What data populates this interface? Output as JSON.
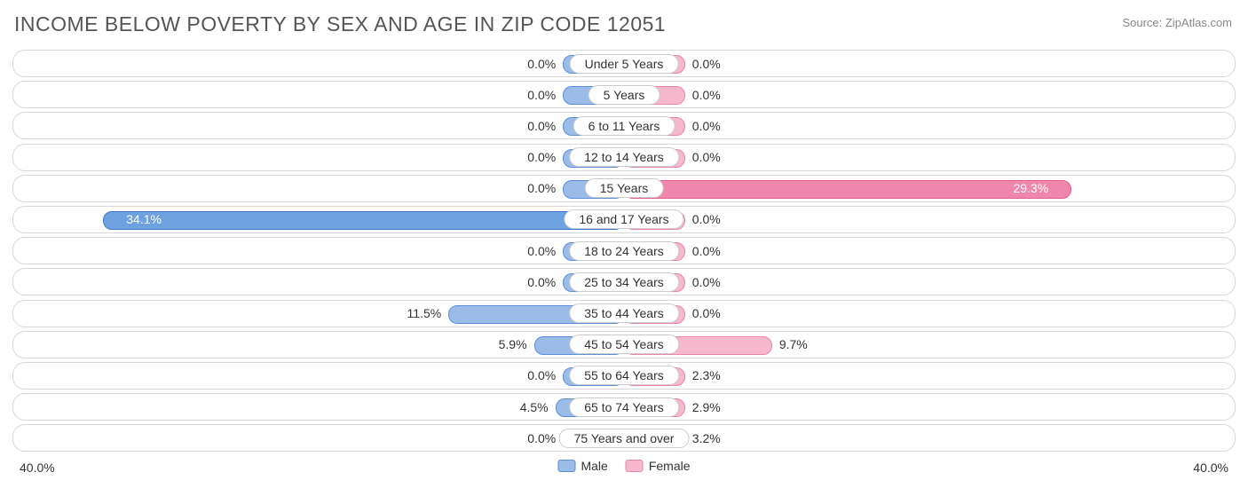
{
  "title": "INCOME BELOW POVERTY BY SEX AND AGE IN ZIP CODE 12051",
  "source": "Source: ZipAtlas.com",
  "axis_max_label": "40.0%",
  "axis_max_value": 40.0,
  "colors": {
    "male_fill": "#9cbce8",
    "male_border": "#5b8fd6",
    "male_highlight_fill": "#6ea1e0",
    "male_highlight_border": "#3f7bc9",
    "female_fill": "#f7b8ce",
    "female_border": "#e986ad",
    "female_highlight_fill": "#ef87ac",
    "female_highlight_border": "#e05f8f",
    "row_border": "#d8d8d8",
    "text": "#333333",
    "background": "#ffffff"
  },
  "legend": {
    "male": "Male",
    "female": "Female"
  },
  "min_bar_pct": 10.0,
  "rows": [
    {
      "category": "Under 5 Years",
      "male": 0.0,
      "female": 0.0,
      "male_label": "0.0%",
      "female_label": "0.0%"
    },
    {
      "category": "5 Years",
      "male": 0.0,
      "female": 0.0,
      "male_label": "0.0%",
      "female_label": "0.0%"
    },
    {
      "category": "6 to 11 Years",
      "male": 0.0,
      "female": 0.0,
      "male_label": "0.0%",
      "female_label": "0.0%"
    },
    {
      "category": "12 to 14 Years",
      "male": 0.0,
      "female": 0.0,
      "male_label": "0.0%",
      "female_label": "0.0%"
    },
    {
      "category": "15 Years",
      "male": 0.0,
      "female": 29.3,
      "male_label": "0.0%",
      "female_label": "29.3%",
      "female_highlight": true
    },
    {
      "category": "16 and 17 Years",
      "male": 34.1,
      "female": 0.0,
      "male_label": "34.1%",
      "female_label": "0.0%",
      "male_highlight": true
    },
    {
      "category": "18 to 24 Years",
      "male": 0.0,
      "female": 0.0,
      "male_label": "0.0%",
      "female_label": "0.0%"
    },
    {
      "category": "25 to 34 Years",
      "male": 0.0,
      "female": 0.0,
      "male_label": "0.0%",
      "female_label": "0.0%"
    },
    {
      "category": "35 to 44 Years",
      "male": 11.5,
      "female": 0.0,
      "male_label": "11.5%",
      "female_label": "0.0%"
    },
    {
      "category": "45 to 54 Years",
      "male": 5.9,
      "female": 9.7,
      "male_label": "5.9%",
      "female_label": "9.7%"
    },
    {
      "category": "55 to 64 Years",
      "male": 0.0,
      "female": 2.3,
      "male_label": "0.0%",
      "female_label": "2.3%"
    },
    {
      "category": "65 to 74 Years",
      "male": 4.5,
      "female": 2.9,
      "male_label": "4.5%",
      "female_label": "2.9%"
    },
    {
      "category": "75 Years and over",
      "male": 0.0,
      "female": 3.2,
      "male_label": "0.0%",
      "female_label": "3.2%"
    }
  ]
}
